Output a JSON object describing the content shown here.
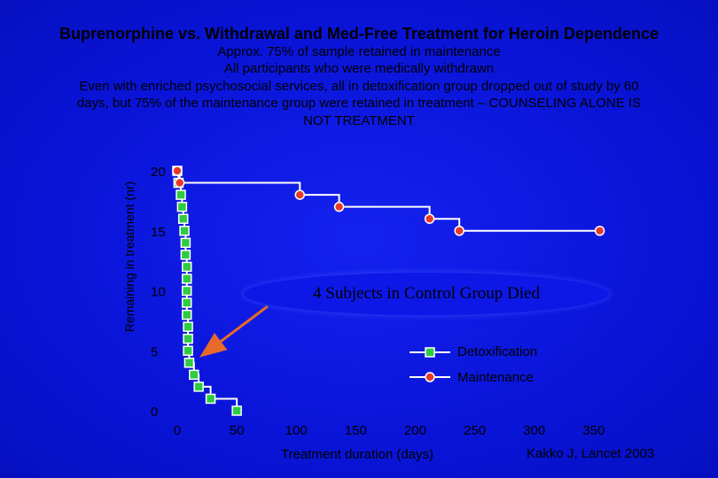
{
  "slide": {
    "title": "Buprenorphine vs. Withdrawal and Med-Free Treatment for Heroin Dependence",
    "lines": [
      "Approx. 75% of sample retained in maintenance",
      "All participants who were medically withdrawn",
      "Even with enriched psychosocial services, all in detoxification group dropped out of study by 60",
      "days, but 75% of the maintenance group were retained in treatment – COUNSELING ALONE IS",
      "NOT TREATMENT"
    ],
    "citation": "Kakko J, Lancet 2003"
  },
  "colors": {
    "background": "#0a14e0",
    "line": "#ffffff",
    "detox_marker": "#2ecc40",
    "maintenance_marker": "#e53b2b",
    "arrow": "#e86a2a"
  },
  "chart_data": {
    "type": "line",
    "xlabel": "Treatment duration (days)",
    "ylabel": "Remaining in treatment  (nr)",
    "xlim": [
      0,
      365
    ],
    "ylim": [
      0,
      20
    ],
    "xticks": [
      0,
      50,
      100,
      150,
      200,
      250,
      300,
      350
    ],
    "yticks": [
      0,
      5,
      10,
      15,
      20
    ],
    "legend_position": "bottom-right",
    "annotation": "4 Subjects in Control Group Died",
    "series": [
      {
        "name": "Detoxification",
        "marker": "square",
        "points": [
          [
            0,
            20
          ],
          [
            1,
            19
          ],
          [
            3,
            18
          ],
          [
            4,
            17
          ],
          [
            5,
            16
          ],
          [
            6,
            15
          ],
          [
            7,
            14
          ],
          [
            7,
            13
          ],
          [
            8,
            12
          ],
          [
            8,
            11
          ],
          [
            8,
            10
          ],
          [
            8,
            9
          ],
          [
            8,
            8
          ],
          [
            9,
            7
          ],
          [
            9,
            6
          ],
          [
            9,
            5
          ],
          [
            10,
            4
          ],
          [
            14,
            3
          ],
          [
            18,
            2
          ],
          [
            28,
            1
          ],
          [
            50,
            0
          ]
        ]
      },
      {
        "name": "Maintenance",
        "marker": "circle",
        "points": [
          [
            0,
            20
          ],
          [
            2,
            19
          ],
          [
            103,
            18
          ],
          [
            136,
            17
          ],
          [
            212,
            16
          ],
          [
            237,
            15
          ],
          [
            355,
            15
          ]
        ]
      }
    ]
  }
}
